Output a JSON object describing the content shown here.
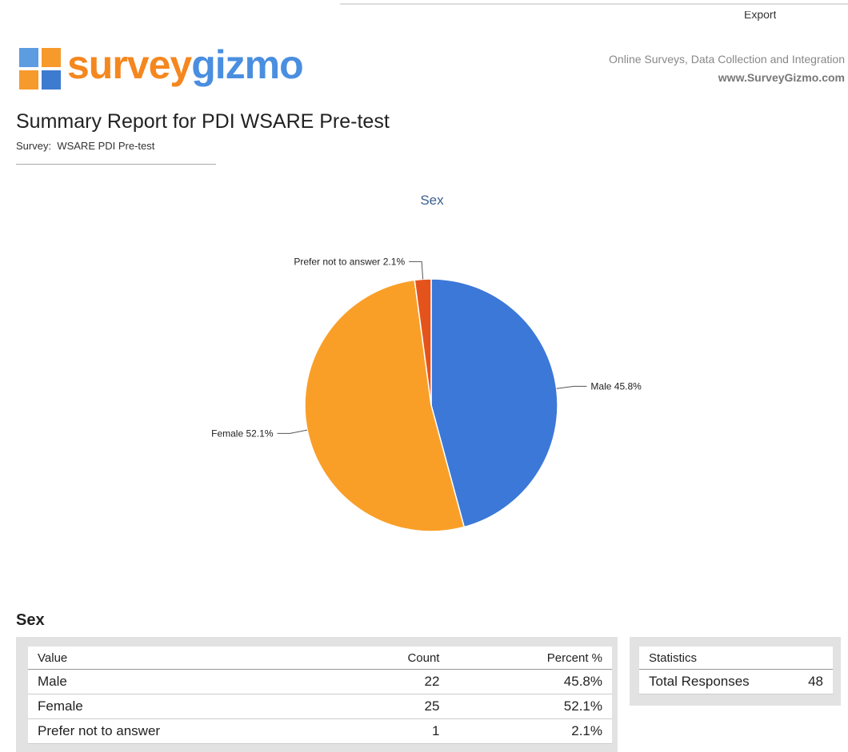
{
  "header": {
    "export": "Export",
    "logo": [
      "survey",
      "gizmo"
    ],
    "tagline": "Online Surveys, Data Collection and Integration",
    "url": "www.SurveyGizmo.com"
  },
  "report": {
    "title": "Summary Report for PDI WSARE Pre-test",
    "survey_label": "Survey:",
    "survey_name": "WSARE PDI Pre-test"
  },
  "chart_data": {
    "type": "pie",
    "title": "Sex",
    "categories": [
      "Male",
      "Female",
      "Prefer not to answer"
    ],
    "values": [
      45.8,
      52.1,
      2.1
    ],
    "value_labels": [
      "Male 45.8%",
      "Female 52.1%",
      "Prefer not to answer 2.1%"
    ],
    "colors": [
      "#3b78d8",
      "#f99f28",
      "#e5531d"
    ]
  },
  "section": {
    "title": "Sex"
  },
  "table": {
    "header": [
      "Value",
      "Count",
      "Percent %"
    ],
    "rows": [
      [
        "Male",
        22,
        "45.8%"
      ],
      [
        "Female",
        25,
        "52.1%"
      ],
      [
        "Prefer not to answer",
        1,
        "2.1%"
      ]
    ]
  },
  "statistics": {
    "header": "Statistics",
    "rows": [
      [
        "Total Responses",
        48
      ]
    ]
  }
}
